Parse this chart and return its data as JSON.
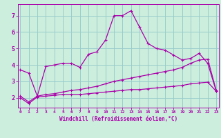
{
  "xlabel": "Windchill (Refroidissement éolien,°C)",
  "background_color": "#cceedd",
  "line_color": "#aa00aa",
  "grid_color": "#99cccc",
  "x_ticks": [
    0,
    1,
    2,
    3,
    4,
    5,
    6,
    7,
    8,
    9,
    10,
    11,
    12,
    13,
    14,
    15,
    16,
    17,
    18,
    19,
    20,
    21,
    22,
    23
  ],
  "y_ticks": [
    2,
    3,
    4,
    5,
    6,
    7
  ],
  "xlim": [
    -0.3,
    23.3
  ],
  "ylim": [
    1.4,
    7.7
  ],
  "series1_x": [
    0,
    1,
    2,
    3,
    4,
    5,
    6,
    7,
    8,
    9,
    10,
    11,
    12,
    13,
    14,
    15,
    16,
    17,
    18,
    19,
    20,
    21,
    22,
    23
  ],
  "series1_y": [
    3.7,
    3.5,
    2.1,
    3.9,
    4.0,
    4.1,
    4.1,
    3.85,
    4.65,
    4.8,
    5.5,
    7.0,
    7.0,
    7.3,
    6.3,
    5.3,
    5.0,
    4.9,
    4.6,
    4.3,
    4.4,
    4.7,
    4.1,
    2.4
  ],
  "series2_x": [
    0,
    1,
    2,
    3,
    4,
    5,
    6,
    7,
    8,
    9,
    10,
    11,
    12,
    13,
    14,
    15,
    16,
    17,
    18,
    19,
    20,
    21,
    22,
    23
  ],
  "series2_y": [
    2.0,
    1.65,
    2.05,
    2.1,
    2.15,
    2.2,
    2.2,
    2.2,
    2.25,
    2.3,
    2.35,
    2.4,
    2.45,
    2.5,
    2.5,
    2.55,
    2.6,
    2.65,
    2.7,
    2.75,
    2.85,
    2.9,
    2.95,
    2.4
  ],
  "series3_x": [
    0,
    1,
    2,
    3,
    4,
    5,
    6,
    7,
    8,
    9,
    10,
    11,
    12,
    13,
    14,
    15,
    16,
    17,
    18,
    19,
    20,
    21,
    22,
    23
  ],
  "series3_y": [
    2.1,
    1.75,
    2.1,
    2.2,
    2.25,
    2.35,
    2.45,
    2.5,
    2.6,
    2.7,
    2.85,
    3.0,
    3.1,
    3.2,
    3.3,
    3.4,
    3.5,
    3.6,
    3.7,
    3.85,
    4.1,
    4.3,
    4.35,
    2.45
  ]
}
